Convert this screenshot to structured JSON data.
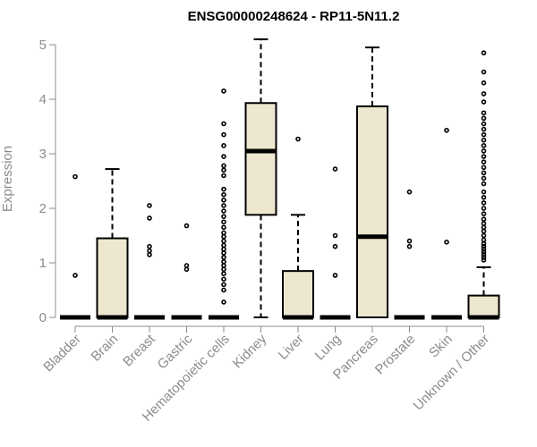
{
  "chart_data": {
    "type": "boxplot",
    "title": "ENSG00000248624 - RP11-5N11.2",
    "xlabel": "",
    "ylabel": "Expression",
    "ylim": [
      0,
      5.1
    ],
    "yticks": [
      0,
      1,
      2,
      3,
      4,
      5
    ],
    "categories": [
      "Bladder",
      "Brain",
      "Breast",
      "Gastric",
      "Hematopoietic cells",
      "Kidney",
      "Liver",
      "Lung",
      "Pancreas",
      "Prostate",
      "Skin",
      "Unknown / Other"
    ],
    "box_fill": "#ede7cf",
    "series": [
      {
        "name": "Bladder",
        "min": 0,
        "q1": 0,
        "median": 0,
        "q3": 0,
        "max": 0,
        "outliers": [
          0.77,
          2.58
        ]
      },
      {
        "name": "Brain",
        "min": 0,
        "q1": 0,
        "median": 0,
        "q3": 1.45,
        "max": 2.72,
        "outliers": []
      },
      {
        "name": "Breast",
        "min": 0,
        "q1": 0,
        "median": 0,
        "q3": 0,
        "max": 0,
        "outliers": [
          1.15,
          1.22,
          1.3,
          1.82,
          2.05
        ]
      },
      {
        "name": "Gastric",
        "min": 0,
        "q1": 0,
        "median": 0,
        "q3": 0,
        "max": 0,
        "outliers": [
          0.88,
          0.95,
          1.68
        ]
      },
      {
        "name": "Hematopoietic cells",
        "min": 0,
        "q1": 0,
        "median": 0,
        "q3": 0,
        "max": 0,
        "outliers": [
          0.28,
          0.5,
          0.6,
          0.7,
          0.8,
          0.88,
          0.95,
          1.02,
          1.1,
          1.18,
          1.25,
          1.32,
          1.4,
          1.48,
          1.55,
          1.65,
          1.75,
          1.85,
          1.95,
          2.05,
          2.15,
          2.25,
          2.35,
          2.6,
          2.7,
          2.78,
          2.95,
          3.15,
          3.35,
          3.55,
          4.15
        ]
      },
      {
        "name": "Kidney",
        "min": 0,
        "q1": 1.88,
        "median": 3.05,
        "q3": 3.93,
        "max": 5.1,
        "outliers": []
      },
      {
        "name": "Liver",
        "min": 0,
        "q1": 0,
        "median": 0,
        "q3": 0.85,
        "max": 1.88,
        "outliers": [
          3.27
        ]
      },
      {
        "name": "Lung",
        "min": 0,
        "q1": 0,
        "median": 0,
        "q3": 0,
        "max": 0,
        "outliers": [
          0.77,
          1.3,
          1.5,
          2.72
        ]
      },
      {
        "name": "Pancreas",
        "min": 0,
        "q1": 0,
        "median": 1.48,
        "q3": 3.87,
        "max": 4.95,
        "outliers": []
      },
      {
        "name": "Prostate",
        "min": 0,
        "q1": 0,
        "median": 0,
        "q3": 0,
        "max": 0,
        "outliers": [
          1.3,
          1.4,
          2.3
        ]
      },
      {
        "name": "Skin",
        "min": 0,
        "q1": 0,
        "median": 0,
        "q3": 0,
        "max": 0,
        "outliers": [
          1.38,
          3.43
        ]
      },
      {
        "name": "Unknown / Other",
        "min": 0,
        "q1": 0,
        "median": 0,
        "q3": 0.4,
        "max": 0.92,
        "outliers": [
          1.05,
          1.1,
          1.15,
          1.2,
          1.25,
          1.3,
          1.35,
          1.42,
          1.5,
          1.58,
          1.65,
          1.72,
          1.8,
          1.9,
          2.0,
          2.1,
          2.2,
          2.3,
          2.45,
          2.55,
          2.65,
          2.75,
          2.85,
          2.95,
          3.05,
          3.15,
          3.25,
          3.35,
          3.45,
          3.55,
          3.65,
          3.75,
          3.95,
          4.1,
          4.3,
          4.5,
          4.85
        ]
      }
    ]
  }
}
